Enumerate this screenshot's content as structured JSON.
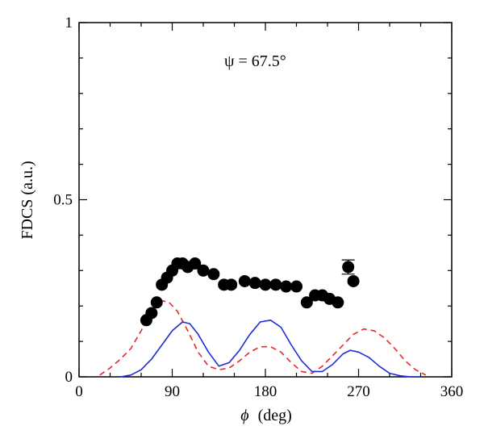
{
  "chart_data": {
    "type": "scatter",
    "annotation": "ψ = 67.5°",
    "xlabel_symbol": "ϕ",
    "xlabel_unit": "(deg)",
    "ylabel": "FDCS (a.u.)",
    "xlim": [
      0,
      360
    ],
    "ylim": [
      0,
      1
    ],
    "xticks": [
      0,
      90,
      180,
      270,
      360
    ],
    "xtick_labels": [
      "0",
      "90",
      "180",
      "270",
      "360"
    ],
    "yticks": [
      0,
      0.5,
      1
    ],
    "ytick_labels": [
      "0",
      "0.5",
      "1"
    ],
    "grid": false,
    "legend": "none",
    "series": [
      {
        "kind": "scatter",
        "marker": "filled-circle",
        "color": "#000000",
        "x": [
          65,
          70,
          75,
          80,
          85,
          90,
          95,
          100,
          105,
          112,
          120,
          130,
          140,
          147,
          160,
          170,
          180,
          190,
          200,
          210,
          220,
          228,
          235,
          242,
          250,
          260,
          265
        ],
        "y": [
          0.16,
          0.18,
          0.21,
          0.26,
          0.28,
          0.3,
          0.32,
          0.32,
          0.31,
          0.32,
          0.3,
          0.29,
          0.26,
          0.26,
          0.27,
          0.265,
          0.26,
          0.26,
          0.255,
          0.255,
          0.21,
          0.23,
          0.23,
          0.22,
          0.21,
          0.31,
          0.27
        ],
        "error_bar": {
          "x": 260,
          "y": 0.31,
          "err": 0.02
        }
      },
      {
        "kind": "line",
        "style": "dashed",
        "color": "#e8262a",
        "x": [
          20,
          30,
          40,
          50,
          60,
          70,
          80,
          87,
          95,
          105,
          115,
          125,
          135,
          145,
          155,
          165,
          175,
          185,
          195,
          205,
          215,
          225,
          235,
          245,
          255,
          265,
          275,
          285,
          295,
          305,
          315,
          325,
          335
        ],
        "y": [
          0.005,
          0.025,
          0.05,
          0.08,
          0.13,
          0.19,
          0.215,
          0.21,
          0.185,
          0.13,
          0.07,
          0.03,
          0.02,
          0.025,
          0.045,
          0.07,
          0.085,
          0.085,
          0.07,
          0.04,
          0.015,
          0.01,
          0.03,
          0.06,
          0.09,
          0.12,
          0.135,
          0.13,
          0.11,
          0.08,
          0.045,
          0.02,
          0.005
        ]
      },
      {
        "kind": "line",
        "style": "solid",
        "color": "#1f2bd6",
        "x": [
          40,
          50,
          60,
          70,
          80,
          90,
          100,
          107,
          115,
          125,
          135,
          145,
          155,
          165,
          175,
          185,
          195,
          205,
          215,
          225,
          235,
          245,
          255,
          262,
          270,
          280,
          290,
          300,
          310,
          320,
          330
        ],
        "y": [
          0.0,
          0.005,
          0.02,
          0.05,
          0.09,
          0.13,
          0.155,
          0.15,
          0.12,
          0.07,
          0.03,
          0.04,
          0.075,
          0.12,
          0.155,
          0.16,
          0.14,
          0.09,
          0.045,
          0.015,
          0.015,
          0.035,
          0.065,
          0.075,
          0.07,
          0.055,
          0.03,
          0.01,
          0.003,
          0.0,
          0.0
        ]
      }
    ]
  }
}
